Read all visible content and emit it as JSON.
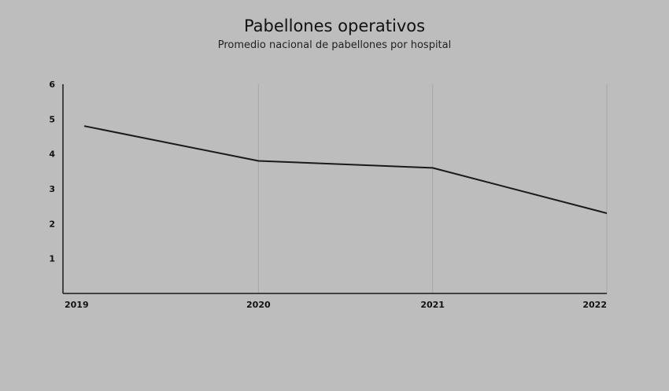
{
  "chart_data": {
    "type": "line",
    "title": "Pabellones operativos",
    "subtitle": "Promedio nacional de pabellones por hospital",
    "x": [
      "2019",
      "2020",
      "2021",
      "2022"
    ],
    "series": [
      {
        "values": [
          4.8,
          3.8,
          3.6,
          2.3
        ]
      }
    ],
    "ylim": [
      0,
      6
    ],
    "yticks": [
      1,
      2,
      3,
      4,
      5,
      6
    ],
    "grid": "vertical",
    "xlabel": "",
    "ylabel": "",
    "colors": {
      "line": "#1a1a1a",
      "axis": "#1a1a1a",
      "grid": "#a6a6a6",
      "background": "#bdbdbd"
    }
  }
}
